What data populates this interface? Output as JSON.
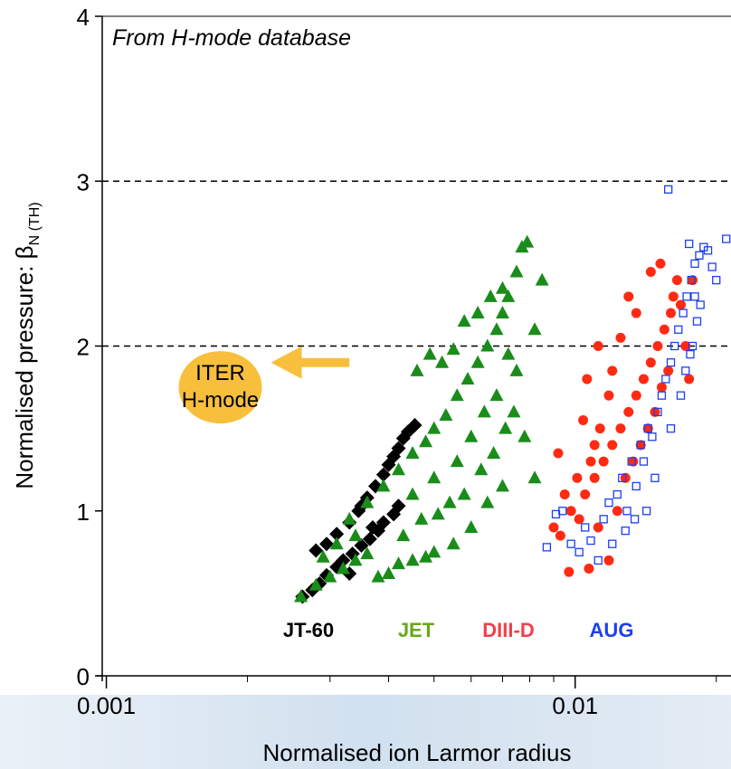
{
  "chart_data": {
    "type": "scatter",
    "annotation": "From H-mode database",
    "xlabel": "Normalised ion Larmor radius",
    "ylabel": "Normalised pressure: β",
    "ylabel_subscript": "N (TH)",
    "x_scale": "log",
    "xlim": [
      0.00098,
      0.0215
    ],
    "ylim": [
      0,
      4
    ],
    "x_ticks": [
      {
        "value": 0.001,
        "label": "0.001"
      },
      {
        "value": 0.01,
        "label": "0.01"
      }
    ],
    "y_ticks": [
      {
        "value": 0,
        "label": "0"
      },
      {
        "value": 1,
        "label": "1"
      },
      {
        "value": 2,
        "label": "2"
      },
      {
        "value": 3,
        "label": "3"
      },
      {
        "value": 4,
        "label": "4"
      }
    ],
    "reference_lines": [
      {
        "y": 2
      },
      {
        "y": 3
      }
    ],
    "iter_marker": {
      "x": 0.00175,
      "y": 1.75,
      "label_line1": "ITER",
      "label_line2": "H-mode",
      "color": "#f8bf3c",
      "arrow_from_x": 0.0033,
      "arrow_y": 1.9
    },
    "series": [
      {
        "name": "JT-60",
        "marker": "diamond",
        "color": "#000000",
        "points": [
          [
            0.00262,
            0.48
          ],
          [
            0.00275,
            0.52
          ],
          [
            0.00285,
            0.56
          ],
          [
            0.00295,
            0.61
          ],
          [
            0.0031,
            0.66
          ],
          [
            0.0032,
            0.7
          ],
          [
            0.00335,
            0.74
          ],
          [
            0.0035,
            0.79
          ],
          [
            0.00365,
            0.83
          ],
          [
            0.0038,
            0.88
          ],
          [
            0.0039,
            0.93
          ],
          [
            0.0041,
            0.98
          ],
          [
            0.0042,
            1.03
          ],
          [
            0.0028,
            0.76
          ],
          [
            0.00295,
            0.8
          ],
          [
            0.0031,
            0.86
          ],
          [
            0.0033,
            0.93
          ],
          [
            0.00345,
            1.0
          ],
          [
            0.0036,
            1.08
          ],
          [
            0.00375,
            1.15
          ],
          [
            0.0039,
            1.22
          ],
          [
            0.004,
            1.28
          ],
          [
            0.0041,
            1.33
          ],
          [
            0.0042,
            1.38
          ],
          [
            0.0043,
            1.44
          ],
          [
            0.0044,
            1.48
          ],
          [
            0.00455,
            1.52
          ],
          [
            0.0037,
            0.9
          ],
          [
            0.0035,
            1.03
          ],
          [
            0.0033,
            0.62
          ]
        ]
      },
      {
        "name": "JET",
        "marker": "triangle",
        "color": "#1a8c1a",
        "points": [
          [
            0.0026,
            0.48
          ],
          [
            0.0028,
            0.55
          ],
          [
            0.003,
            0.6
          ],
          [
            0.0032,
            0.65
          ],
          [
            0.0034,
            0.7
          ],
          [
            0.0036,
            0.74
          ],
          [
            0.0038,
            0.6
          ],
          [
            0.004,
            0.62
          ],
          [
            0.0042,
            0.68
          ],
          [
            0.0045,
            0.7
          ],
          [
            0.0048,
            0.72
          ],
          [
            0.005,
            0.75
          ],
          [
            0.0055,
            0.8
          ],
          [
            0.006,
            0.9
          ],
          [
            0.0065,
            1.05
          ],
          [
            0.007,
            1.15
          ],
          [
            0.0033,
            0.95
          ],
          [
            0.0036,
            1.05
          ],
          [
            0.0039,
            1.15
          ],
          [
            0.0042,
            1.25
          ],
          [
            0.0045,
            1.35
          ],
          [
            0.0048,
            1.42
          ],
          [
            0.005,
            1.5
          ],
          [
            0.0053,
            1.58
          ],
          [
            0.0056,
            1.7
          ],
          [
            0.0059,
            1.8
          ],
          [
            0.0062,
            1.9
          ],
          [
            0.0065,
            2.0
          ],
          [
            0.0068,
            2.1
          ],
          [
            0.007,
            2.2
          ],
          [
            0.0072,
            2.3
          ],
          [
            0.0075,
            2.45
          ],
          [
            0.0077,
            2.6
          ],
          [
            0.0079,
            2.63
          ],
          [
            0.0072,
            1.95
          ],
          [
            0.0075,
            1.85
          ],
          [
            0.0082,
            2.1
          ],
          [
            0.0085,
            2.4
          ],
          [
            0.0078,
            1.45
          ],
          [
            0.0082,
            1.2
          ],
          [
            0.0046,
            1.85
          ],
          [
            0.0049,
            1.95
          ],
          [
            0.0052,
            1.9
          ],
          [
            0.0055,
            1.98
          ],
          [
            0.0058,
            2.15
          ],
          [
            0.0062,
            2.2
          ],
          [
            0.0066,
            2.3
          ],
          [
            0.007,
            2.35
          ],
          [
            0.0056,
            1.3
          ],
          [
            0.006,
            1.45
          ],
          [
            0.0064,
            1.6
          ],
          [
            0.0068,
            1.7
          ],
          [
            0.0045,
            1.1
          ],
          [
            0.005,
            1.2
          ],
          [
            0.0054,
            1.05
          ],
          [
            0.0058,
            1.1
          ],
          [
            0.0063,
            1.25
          ],
          [
            0.0067,
            1.35
          ],
          [
            0.0071,
            1.5
          ],
          [
            0.0074,
            1.6
          ],
          [
            0.0043,
            0.85
          ],
          [
            0.0047,
            0.95
          ],
          [
            0.0051,
            0.98
          ],
          [
            0.0034,
            0.85
          ],
          [
            0.0029,
            0.72
          ],
          [
            0.0031,
            0.8
          ]
        ]
      },
      {
        "name": "DIII-D",
        "marker": "circle",
        "color": "#ff2a12",
        "points": [
          [
            0.009,
            0.9
          ],
          [
            0.0093,
            0.85
          ],
          [
            0.0097,
            0.63
          ],
          [
            0.0102,
            0.95
          ],
          [
            0.0105,
            1.1
          ],
          [
            0.0107,
            0.65
          ],
          [
            0.011,
            1.2
          ],
          [
            0.0112,
            0.9
          ],
          [
            0.0115,
            1.3
          ],
          [
            0.0118,
            0.7
          ],
          [
            0.012,
            1.4
          ],
          [
            0.0123,
            1.0
          ],
          [
            0.0125,
            1.5
          ],
          [
            0.0128,
            1.2
          ],
          [
            0.013,
            1.6
          ],
          [
            0.0133,
            1.3
          ],
          [
            0.0135,
            1.7
          ],
          [
            0.0138,
            1.4
          ],
          [
            0.014,
            1.8
          ],
          [
            0.0143,
            1.5
          ],
          [
            0.0145,
            1.9
          ],
          [
            0.0148,
            1.6
          ],
          [
            0.015,
            2.0
          ],
          [
            0.0153,
            1.75
          ],
          [
            0.0155,
            2.1
          ],
          [
            0.0158,
            1.85
          ],
          [
            0.016,
            2.2
          ],
          [
            0.0162,
            2.3
          ],
          [
            0.0165,
            2.4
          ],
          [
            0.0145,
            2.45
          ],
          [
            0.0152,
            2.5
          ],
          [
            0.0168,
            2.25
          ],
          [
            0.0172,
            2.0
          ],
          [
            0.0175,
            1.8
          ],
          [
            0.0178,
            2.4
          ],
          [
            0.013,
            2.3
          ],
          [
            0.0135,
            2.2
          ],
          [
            0.0125,
            2.05
          ],
          [
            0.012,
            1.85
          ],
          [
            0.0118,
            1.7
          ],
          [
            0.0113,
            1.5
          ],
          [
            0.011,
            1.4
          ],
          [
            0.0108,
            1.3
          ],
          [
            0.0104,
            1.55
          ],
          [
            0.0101,
            1.2
          ],
          [
            0.0098,
            1.0
          ],
          [
            0.0095,
            1.1
          ],
          [
            0.0092,
            1.35
          ],
          [
            0.0106,
            1.8
          ],
          [
            0.0112,
            2.0
          ]
        ]
      },
      {
        "name": "AUG",
        "marker": "square-open",
        "color": "#1c3ff0",
        "points": [
          [
            0.0087,
            0.78
          ],
          [
            0.0091,
            0.98
          ],
          [
            0.0094,
            1.0
          ],
          [
            0.0098,
            0.8
          ],
          [
            0.0102,
            0.75
          ],
          [
            0.0105,
            0.9
          ],
          [
            0.0108,
            0.82
          ],
          [
            0.0112,
            0.7
          ],
          [
            0.0115,
            0.95
          ],
          [
            0.0118,
            1.05
          ],
          [
            0.012,
            0.8
          ],
          [
            0.0123,
            1.1
          ],
          [
            0.0126,
            1.2
          ],
          [
            0.0129,
            1.0
          ],
          [
            0.0132,
            1.3
          ],
          [
            0.0135,
            1.15
          ],
          [
            0.0138,
            1.4
          ],
          [
            0.014,
            1.3
          ],
          [
            0.0143,
            1.5
          ],
          [
            0.0146,
            1.45
          ],
          [
            0.015,
            1.6
          ],
          [
            0.0153,
            1.7
          ],
          [
            0.0156,
            1.8
          ],
          [
            0.016,
            1.9
          ],
          [
            0.0163,
            2.0
          ],
          [
            0.0166,
            2.1
          ],
          [
            0.017,
            2.2
          ],
          [
            0.0173,
            2.3
          ],
          [
            0.0177,
            2.4
          ],
          [
            0.018,
            2.5
          ],
          [
            0.0184,
            2.55
          ],
          [
            0.0188,
            2.6
          ],
          [
            0.0192,
            2.58
          ],
          [
            0.0196,
            2.48
          ],
          [
            0.02,
            2.4
          ],
          [
            0.021,
            2.65
          ],
          [
            0.0178,
            2.0
          ],
          [
            0.0182,
            2.15
          ],
          [
            0.0185,
            2.25
          ],
          [
            0.0172,
            1.85
          ],
          [
            0.0168,
            1.7
          ],
          [
            0.016,
            1.5
          ],
          [
            0.0158,
            2.95
          ],
          [
            0.0175,
            2.62
          ],
          [
            0.0148,
            1.2
          ],
          [
            0.0142,
            1.0
          ],
          [
            0.0134,
            0.95
          ],
          [
            0.0128,
            0.88
          ],
          [
            0.0176,
            1.95
          ],
          [
            0.018,
            2.3
          ]
        ]
      }
    ]
  }
}
